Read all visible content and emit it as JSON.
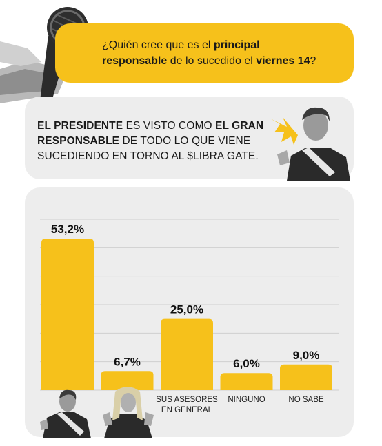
{
  "question": {
    "pre": "¿Quién cree que es el ",
    "bold1": "principal",
    "bold2": "responsable",
    "mid": " de lo sucedido el ",
    "bold3": "viernes 14",
    "end": "?"
  },
  "statement": {
    "b1": "EL PRESIDENTE",
    "t1": " ES VISTO COMO ",
    "b2": "EL GRAN RESPONSABLE",
    "t2": " DE TODO LO QUE VIENE SUCEDIENDO EN TORNO AL $LIBRA GATE."
  },
  "chart_data": {
    "type": "bar",
    "categories": [
      "",
      "",
      "SUS ASESORES EN GENERAL",
      "NINGUNO",
      "NO SABE"
    ],
    "category_lines": [
      [],
      [],
      [
        "SUS ASESORES",
        "EN GENERAL"
      ],
      [
        "NINGUNO"
      ],
      [
        "NO SABE"
      ]
    ],
    "values": [
      53.2,
      6.7,
      25.0,
      6.0,
      9.0
    ],
    "value_labels": [
      "53,2%",
      "6,7%",
      "25,0%",
      "6,0%",
      "9,0%"
    ],
    "ylim": [
      0,
      60
    ],
    "grid": true,
    "bar_color": "#f6c11b"
  },
  "colors": {
    "accent": "#f6c11b",
    "panel": "#ededed"
  },
  "icons": [
    "microphone-hand-icon",
    "president-photo-icon",
    "woman-photo-icon"
  ]
}
